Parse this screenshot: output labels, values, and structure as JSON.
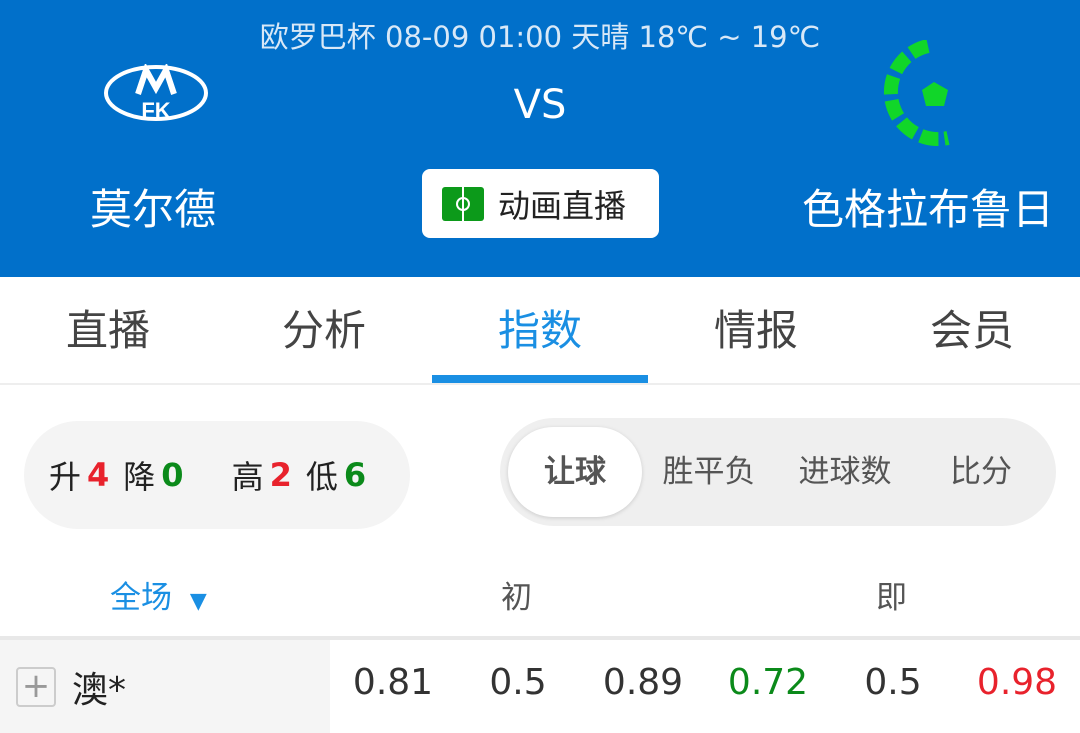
{
  "header": {
    "info": "欧罗巴杯 08-09 01:00 天晴 18℃ ~ 19℃",
    "vs": "VS",
    "home": "莫尔德",
    "away": "色格拉布鲁日",
    "animation_label": "动画直播",
    "brand_color": "#0170ca"
  },
  "tabs": [
    {
      "label": "直播"
    },
    {
      "label": "分析"
    },
    {
      "label": "指数",
      "active": true
    },
    {
      "label": "情报"
    },
    {
      "label": "会员"
    }
  ],
  "stats": {
    "up_label": "升",
    "up": "4",
    "down_label": "降",
    "down": "0",
    "high_label": "高",
    "high": "2",
    "low_label": "低",
    "low": "6"
  },
  "segments": [
    {
      "label": "让球",
      "active": true
    },
    {
      "label": "胜平负"
    },
    {
      "label": "进球数"
    },
    {
      "label": "比分"
    }
  ],
  "columns": {
    "scope": "全场",
    "initial": "初",
    "live": "即"
  },
  "rows": [
    {
      "company": "澳*",
      "values": [
        "0.81",
        "0.5",
        "0.89",
        "0.72",
        "0.5",
        "0.98"
      ],
      "colors": [
        "#333",
        "#333",
        "#333",
        "#0b8a1a",
        "#333",
        "#e8222c"
      ]
    }
  ]
}
